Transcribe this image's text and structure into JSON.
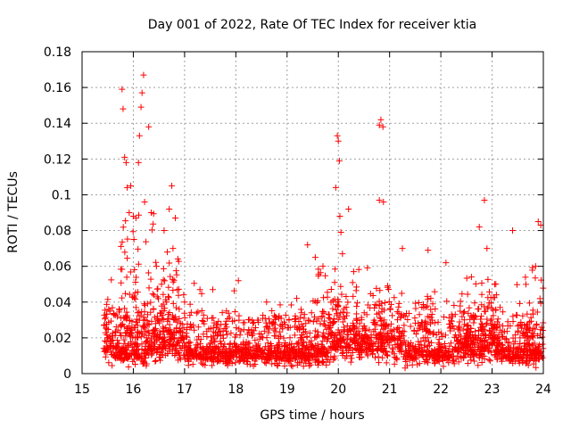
{
  "chart_data": {
    "type": "scatter",
    "title": "Day 001 of 2022, Rate Of TEC Index for receiver ktia",
    "xlabel": "GPS time / hours",
    "ylabel": "ROTI / TECUs",
    "xlim": [
      15,
      24
    ],
    "ylim": [
      0,
      0.18
    ],
    "xticks": [
      "15",
      "16",
      "17",
      "18",
      "19",
      "20",
      "21",
      "22",
      "23",
      "24"
    ],
    "yticks": [
      "0",
      "0.02",
      "0.04",
      "0.06",
      "0.08",
      "0.1",
      "0.12",
      "0.14",
      "0.16",
      "0.18"
    ],
    "grid": true,
    "marker": "plus",
    "color": "#ff0000",
    "x_range_data": [
      15.42,
      24.0
    ],
    "notable_points": [
      {
        "x": 15.52,
        "y": 0.036
      },
      {
        "x": 15.62,
        "y": 0.033
      },
      {
        "x": 15.78,
        "y": 0.159
      },
      {
        "x": 15.8,
        "y": 0.148
      },
      {
        "x": 15.83,
        "y": 0.121
      },
      {
        "x": 15.86,
        "y": 0.118
      },
      {
        "x": 15.88,
        "y": 0.104
      },
      {
        "x": 15.95,
        "y": 0.105
      },
      {
        "x": 15.92,
        "y": 0.09
      },
      {
        "x": 16.0,
        "y": 0.088
      },
      {
        "x": 16.05,
        "y": 0.087
      },
      {
        "x": 16.1,
        "y": 0.118
      },
      {
        "x": 16.12,
        "y": 0.133
      },
      {
        "x": 16.15,
        "y": 0.149
      },
      {
        "x": 16.17,
        "y": 0.157
      },
      {
        "x": 16.2,
        "y": 0.167
      },
      {
        "x": 16.22,
        "y": 0.096
      },
      {
        "x": 16.3,
        "y": 0.138
      },
      {
        "x": 16.35,
        "y": 0.09
      },
      {
        "x": 16.45,
        "y": 0.06
      },
      {
        "x": 16.55,
        "y": 0.05
      },
      {
        "x": 16.6,
        "y": 0.08
      },
      {
        "x": 16.7,
        "y": 0.092
      },
      {
        "x": 16.75,
        "y": 0.105
      },
      {
        "x": 16.82,
        "y": 0.087
      },
      {
        "x": 17.0,
        "y": 0.04
      },
      {
        "x": 17.3,
        "y": 0.047
      },
      {
        "x": 17.55,
        "y": 0.047
      },
      {
        "x": 18.05,
        "y": 0.052
      },
      {
        "x": 18.6,
        "y": 0.04
      },
      {
        "x": 19.4,
        "y": 0.072
      },
      {
        "x": 19.55,
        "y": 0.065
      },
      {
        "x": 19.7,
        "y": 0.06
      },
      {
        "x": 19.95,
        "y": 0.104
      },
      {
        "x": 19.98,
        "y": 0.133
      },
      {
        "x": 20.0,
        "y": 0.13
      },
      {
        "x": 20.02,
        "y": 0.119
      },
      {
        "x": 20.03,
        "y": 0.088
      },
      {
        "x": 20.05,
        "y": 0.079
      },
      {
        "x": 20.08,
        "y": 0.067
      },
      {
        "x": 20.2,
        "y": 0.092
      },
      {
        "x": 20.3,
        "y": 0.057
      },
      {
        "x": 20.8,
        "y": 0.139
      },
      {
        "x": 20.83,
        "y": 0.142
      },
      {
        "x": 20.87,
        "y": 0.138
      },
      {
        "x": 20.8,
        "y": 0.097
      },
      {
        "x": 20.88,
        "y": 0.096
      },
      {
        "x": 21.25,
        "y": 0.07
      },
      {
        "x": 21.75,
        "y": 0.069
      },
      {
        "x": 22.1,
        "y": 0.062
      },
      {
        "x": 22.75,
        "y": 0.082
      },
      {
        "x": 22.85,
        "y": 0.097
      },
      {
        "x": 22.9,
        "y": 0.07
      },
      {
        "x": 23.05,
        "y": 0.05
      },
      {
        "x": 23.4,
        "y": 0.08
      },
      {
        "x": 23.9,
        "y": 0.085
      },
      {
        "x": 23.95,
        "y": 0.083
      },
      {
        "x": 23.85,
        "y": 0.06
      }
    ]
  }
}
